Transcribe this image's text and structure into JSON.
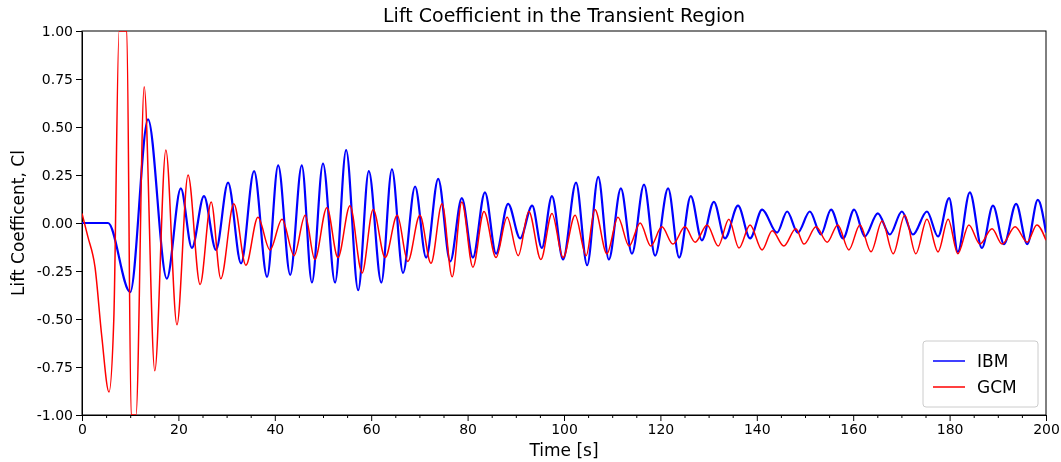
{
  "chart_data": {
    "type": "line",
    "title": "Lift Coefficient in the Transient Region",
    "xlabel": "Time [s]",
    "ylabel": "Lift Coefficent, Cl",
    "xlim": [
      0,
      200
    ],
    "ylim": [
      -1,
      1
    ],
    "xticks": [
      0,
      {
        "value": 5,
        "label": null
      },
      {
        "value": 10,
        "label": null
      },
      {
        "value": 15,
        "label": null
      },
      20,
      {
        "value": 25,
        "label": null
      },
      {
        "value": 30,
        "label": null
      },
      {
        "value": 35,
        "label": null
      },
      40,
      {
        "value": 45,
        "label": null
      },
      {
        "value": 50,
        "label": null
      },
      {
        "value": 55,
        "label": null
      },
      60,
      {
        "value": 65,
        "label": null
      },
      {
        "value": 70,
        "label": null
      },
      {
        "value": 75,
        "label": null
      },
      80,
      {
        "value": 85,
        "label": null
      },
      {
        "value": 90,
        "label": null
      },
      {
        "value": 95,
        "label": null
      },
      100,
      {
        "value": 105,
        "label": null
      },
      {
        "value": 110,
        "label": null
      },
      {
        "value": 115,
        "label": null
      },
      120,
      {
        "value": 125,
        "label": null
      },
      {
        "value": 130,
        "label": null
      },
      {
        "value": 135,
        "label": null
      },
      140,
      {
        "value": 145,
        "label": null
      },
      {
        "value": 150,
        "label": null
      },
      {
        "value": 155,
        "label": null
      },
      160,
      {
        "value": 165,
        "label": null
      },
      {
        "value": 170,
        "label": null
      },
      {
        "value": 175,
        "label": null
      },
      180,
      {
        "value": 185,
        "label": null
      },
      {
        "value": 190,
        "label": null
      },
      {
        "value": 195,
        "label": null
      },
      200
    ],
    "yticks": [
      {
        "value": -1,
        "label": "-1.00"
      },
      {
        "value": -0.75,
        "label": "-0.75"
      },
      {
        "value": -0.5,
        "label": "-0.50"
      },
      {
        "value": -0.25,
        "label": "-0.25"
      },
      {
        "value": 0,
        "label": "0.00"
      },
      {
        "value": 0.25,
        "label": "0.25"
      },
      {
        "value": 0.5,
        "label": "0.50"
      },
      {
        "value": 0.75,
        "label": "0.75"
      },
      {
        "value": 1,
        "label": "1.00"
      }
    ],
    "grid": false,
    "legend": "bottom right",
    "marker": "none",
    "line_style": "solid",
    "series": [
      {
        "name": "IBM",
        "color": "#0000ff",
        "x": [
          0,
          5.4,
          10.0,
          13.7,
          17.6,
          20.5,
          22.8,
          25.3,
          27.8,
          30.3,
          33.0,
          35.7,
          38.4,
          40.7,
          43.2,
          45.6,
          47.7,
          50.0,
          52.5,
          54.8,
          57.3,
          59.5,
          62.1,
          64.3,
          66.6,
          69.1,
          71.4,
          73.9,
          76.4,
          78.8,
          81.1,
          83.6,
          85.9,
          88.4,
          90.9,
          93.4,
          95.4,
          97.5,
          99.8,
          102.5,
          104.8,
          107.1,
          109.3,
          111.8,
          114.1,
          116.6,
          118.9,
          121.6,
          123.9,
          126.3,
          128.6,
          131.1,
          133.4,
          136.1,
          138.6,
          141.1,
          144.2,
          146.3,
          148.5,
          151.0,
          153.3,
          155.4,
          157.9,
          160.2,
          162.4,
          165.1,
          167.6,
          170.1,
          172.4,
          175.3,
          177.6,
          179.9,
          181.7,
          184.2,
          186.7,
          189.0,
          191.3,
          193.8,
          196.1,
          198.3,
          200
        ],
        "values": [
          0,
          0,
          -0.36,
          0.54,
          -0.29,
          0.18,
          -0.13,
          0.14,
          -0.14,
          0.21,
          -0.21,
          0.27,
          -0.28,
          0.3,
          -0.27,
          0.3,
          -0.31,
          0.31,
          -0.31,
          0.38,
          -0.35,
          0.27,
          -0.31,
          0.28,
          -0.26,
          0.19,
          -0.18,
          0.23,
          -0.2,
          0.13,
          -0.18,
          0.16,
          -0.16,
          0.1,
          -0.08,
          0.09,
          -0.13,
          0.14,
          -0.19,
          0.21,
          -0.22,
          0.24,
          -0.19,
          0.18,
          -0.16,
          0.2,
          -0.17,
          0.18,
          -0.18,
          0.14,
          -0.09,
          0.11,
          -0.08,
          0.09,
          -0.08,
          0.07,
          -0.05,
          0.06,
          -0.05,
          0.06,
          -0.06,
          0.07,
          -0.08,
          0.07,
          -0.07,
          0.05,
          -0.06,
          0.06,
          -0.06,
          0.06,
          -0.07,
          0.13,
          -0.15,
          0.16,
          -0.13,
          0.09,
          -0.11,
          0.1,
          -0.11,
          0.12,
          -0.05
        ]
      },
      {
        "name": "GCM",
        "color": "#ff0000",
        "x": [
          0,
          1.2,
          2.7,
          4.1,
          5.6,
          6.6,
          7.7,
          9.3,
          10.2,
          11.2,
          12.9,
          15.1,
          17.4,
          19.7,
          22.0,
          24.5,
          26.8,
          28.8,
          31.5,
          34.0,
          36.5,
          39.0,
          41.5,
          44.0,
          46.3,
          48.3,
          50.8,
          53.1,
          55.6,
          58.1,
          60.4,
          62.9,
          65.4,
          67.6,
          70.1,
          72.4,
          74.7,
          76.8,
          78.8,
          81.1,
          83.4,
          85.9,
          88.2,
          90.5,
          92.7,
          95.2,
          97.5,
          99.8,
          102.3,
          104.6,
          106.4,
          108.9,
          111.2,
          113.5,
          115.8,
          118.0,
          120.3,
          122.6,
          125.1,
          127.2,
          129.7,
          132.0,
          134.2,
          136.3,
          138.6,
          141.1,
          143.2,
          145.6,
          148.1,
          149.8,
          152.3,
          154.6,
          156.8,
          159.1,
          161.4,
          163.7,
          166.0,
          168.3,
          170.7,
          173.0,
          175.3,
          177.6,
          179.7,
          181.7,
          184.0,
          186.3,
          188.8,
          190.9,
          193.6,
          196.1,
          198.1,
          200
        ],
        "values": [
          0.05,
          -0.07,
          -0.23,
          -0.59,
          -0.88,
          -0.5,
          1.0,
          1.0,
          -1.0,
          -1.0,
          0.71,
          -0.77,
          0.38,
          -0.53,
          0.25,
          -0.32,
          0.11,
          -0.29,
          0.1,
          -0.22,
          0.03,
          -0.14,
          0.02,
          -0.17,
          0.04,
          -0.19,
          0.08,
          -0.18,
          0.09,
          -0.26,
          0.07,
          -0.18,
          0.04,
          -0.2,
          0.04,
          -0.21,
          0.1,
          -0.28,
          0.11,
          -0.23,
          0.06,
          -0.18,
          0.03,
          -0.17,
          0.06,
          -0.19,
          0.05,
          -0.18,
          0.04,
          -0.17,
          0.07,
          -0.16,
          0.03,
          -0.12,
          0.0,
          -0.12,
          -0.02,
          -0.11,
          -0.02,
          -0.1,
          -0.01,
          -0.12,
          0.02,
          -0.13,
          -0.01,
          -0.14,
          -0.04,
          -0.12,
          -0.03,
          -0.11,
          -0.02,
          -0.1,
          -0.01,
          -0.14,
          -0.01,
          -0.15,
          0.01,
          -0.16,
          0.04,
          -0.16,
          0.02,
          -0.15,
          0.02,
          -0.16,
          -0.01,
          -0.11,
          -0.03,
          -0.11,
          -0.02,
          -0.1,
          -0.01,
          -0.09
        ]
      }
    ]
  }
}
